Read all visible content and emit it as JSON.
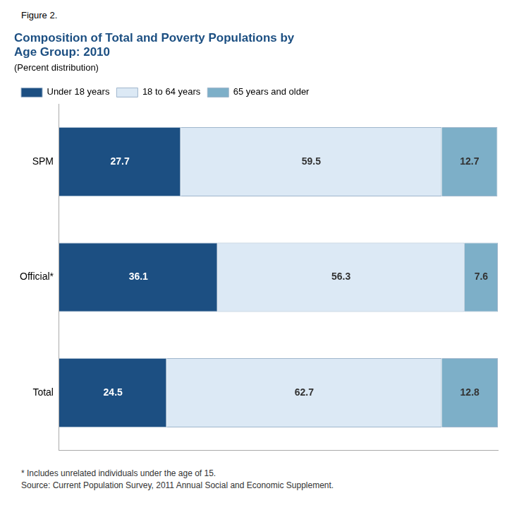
{
  "chart_data": {
    "type": "bar",
    "orientation": "horizontal",
    "stacked": true,
    "figure_label": "Figure 2.",
    "title": [
      "Composition of Total and Poverty Populations by",
      "Age Group: 2010"
    ],
    "subtitle": "(Percent distribution)",
    "categories": [
      "SPM",
      "Official*",
      "Total"
    ],
    "series": [
      {
        "name": "Under 18 years",
        "color": "#1c4f82",
        "values": [
          27.7,
          36.1,
          24.5
        ]
      },
      {
        "name": "18 to 64 years",
        "color": "#dce9f5",
        "values": [
          59.5,
          56.3,
          62.7
        ]
      },
      {
        "name": "65 years and older",
        "color": "#7dafc8",
        "values": [
          12.7,
          7.6,
          12.8
        ]
      }
    ],
    "xlim": [
      0,
      100
    ],
    "grid": false,
    "legend": "top",
    "data_labels": true,
    "tick_labels": "y",
    "footnotes": [
      "* Includes unrelated individuals under the age of 15.",
      "Source: Current Population Survey, 2011 Annual Social and Economic Supplement."
    ]
  }
}
